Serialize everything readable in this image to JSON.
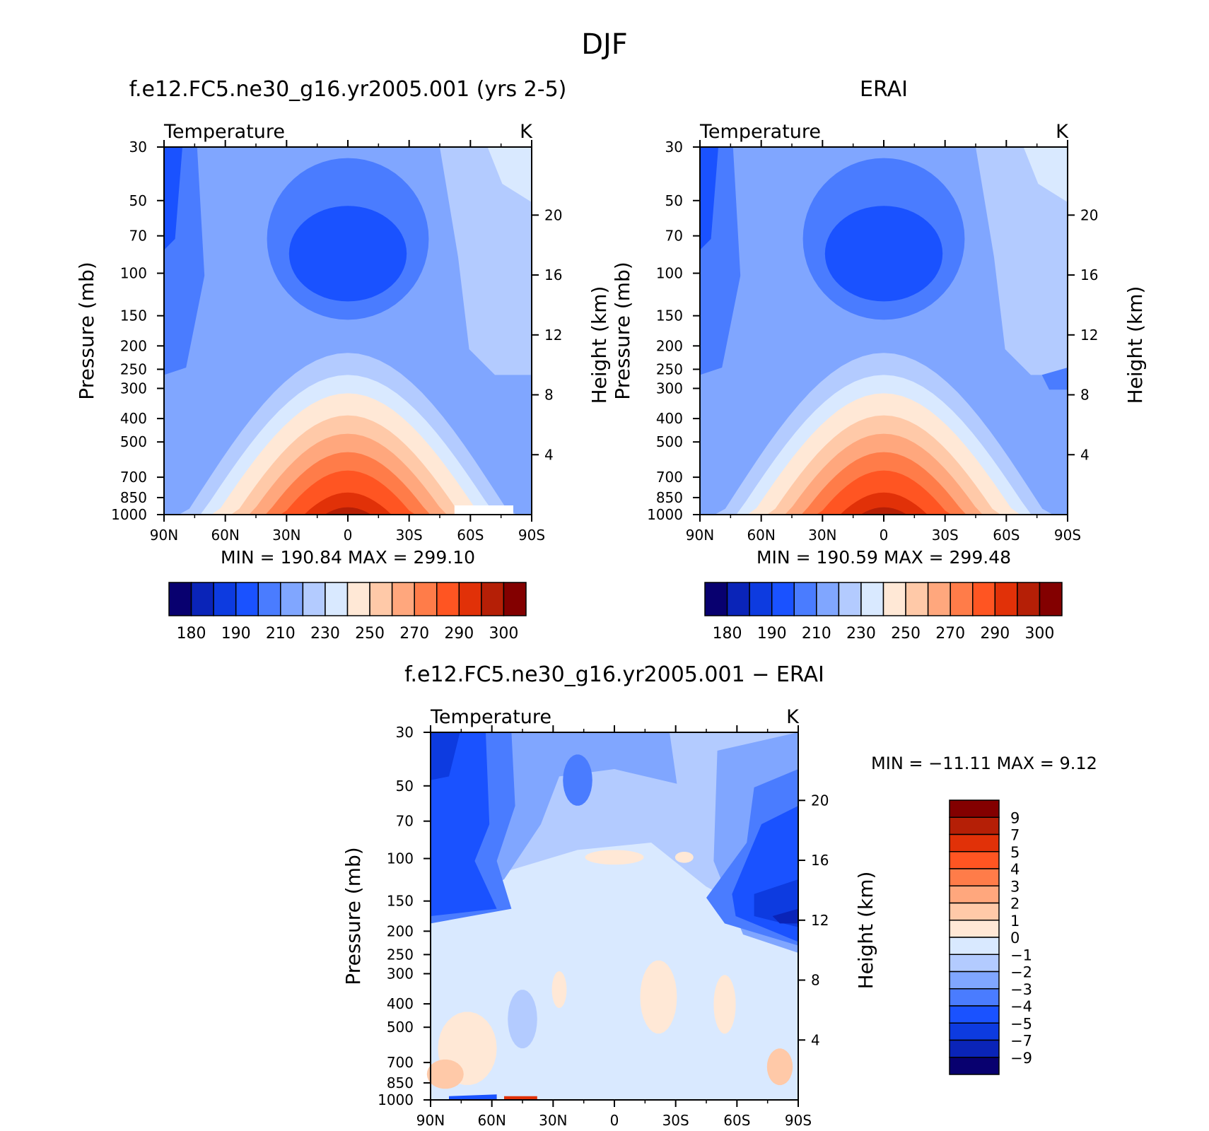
{
  "figure_title": "DJF",
  "chart_data": [
    {
      "type": "contour",
      "title": "f.e12.FC5.ne30_g16.yr2005.001 (yrs 2-5)",
      "variable_label": "Temperature",
      "units": "K",
      "ylabel": "Pressure (mb)",
      "ylabel_right": "Height (km)",
      "x_ticks": [
        "90N",
        "60N",
        "30N",
        "0",
        "30S",
        "60S",
        "90S"
      ],
      "y_ticks": [
        "30",
        "50",
        "70",
        "100",
        "150",
        "200",
        "250",
        "300",
        "400",
        "500",
        "700",
        "850",
        "1000"
      ],
      "y_ticks_right": [
        "20",
        "16",
        "12",
        "8",
        "4"
      ],
      "yscale": "log",
      "ylim": [
        1000,
        30
      ],
      "stats": "MIN =  190.84   MAX =  299.10",
      "min": 190.84,
      "max": 299.1,
      "colorbar_labels": [
        "180",
        "190",
        "210",
        "230",
        "250",
        "270",
        "290",
        "300"
      ],
      "colorbar_colors": [
        "#08006f",
        "#0a24b8",
        "#0d3be0",
        "#1a52ff",
        "#4a7cff",
        "#80a6ff",
        "#b3cbff",
        "#d9e9ff",
        "#ffe8d6",
        "#ffc9a8",
        "#ffa77d",
        "#ff7c49",
        "#ff5522",
        "#e13108",
        "#b51f06",
        "#830000"
      ]
    },
    {
      "type": "contour",
      "title": "ERAI",
      "variable_label": "Temperature",
      "units": "K",
      "ylabel": "Pressure (mb)",
      "ylabel_right": "Height (km)",
      "x_ticks": [
        "90N",
        "60N",
        "30N",
        "0",
        "30S",
        "60S",
        "90S"
      ],
      "y_ticks": [
        "30",
        "50",
        "70",
        "100",
        "150",
        "200",
        "250",
        "300",
        "400",
        "500",
        "700",
        "850",
        "1000"
      ],
      "y_ticks_right": [
        "20",
        "16",
        "12",
        "8",
        "4"
      ],
      "yscale": "log",
      "ylim": [
        1000,
        30
      ],
      "stats": "MIN =  190.59   MAX =  299.48",
      "min": 190.59,
      "max": 299.48,
      "colorbar_labels": [
        "180",
        "190",
        "210",
        "230",
        "250",
        "270",
        "290",
        "300"
      ],
      "colorbar_colors": [
        "#08006f",
        "#0a24b8",
        "#0d3be0",
        "#1a52ff",
        "#4a7cff",
        "#80a6ff",
        "#b3cbff",
        "#d9e9ff",
        "#ffe8d6",
        "#ffc9a8",
        "#ffa77d",
        "#ff7c49",
        "#ff5522",
        "#e13108",
        "#b51f06",
        "#830000"
      ]
    },
    {
      "type": "contour",
      "title": "f.e12.FC5.ne30_g16.yr2005.001 − ERAI",
      "variable_label": "Temperature",
      "units": "K",
      "ylabel": "Pressure (mb)",
      "ylabel_right": "Height (km)",
      "x_ticks": [
        "90N",
        "60N",
        "30N",
        "0",
        "30S",
        "60S",
        "90S"
      ],
      "y_ticks": [
        "30",
        "50",
        "70",
        "100",
        "150",
        "200",
        "250",
        "300",
        "400",
        "500",
        "700",
        "850",
        "1000"
      ],
      "y_ticks_right": [
        "20",
        "16",
        "12",
        "8",
        "4"
      ],
      "yscale": "log",
      "ylim": [
        1000,
        30
      ],
      "stats": "MIN = −11.11    MAX =     9.12",
      "min": -11.11,
      "max": 9.12,
      "colorbar_labels": [
        "9",
        "7",
        "5",
        "4",
        "3",
        "2",
        "1",
        "0",
        "−1",
        "−2",
        "−3",
        "−4",
        "−5",
        "−7",
        "−9"
      ],
      "colorbar_colors": [
        "#830000",
        "#b51f06",
        "#e13108",
        "#ff5522",
        "#ff7c49",
        "#ffa77d",
        "#ffc9a8",
        "#ffe8d6",
        "#d9e9ff",
        "#b3cbff",
        "#80a6ff",
        "#4a7cff",
        "#1a52ff",
        "#0d3be0",
        "#0a24b8",
        "#08006f"
      ]
    }
  ]
}
